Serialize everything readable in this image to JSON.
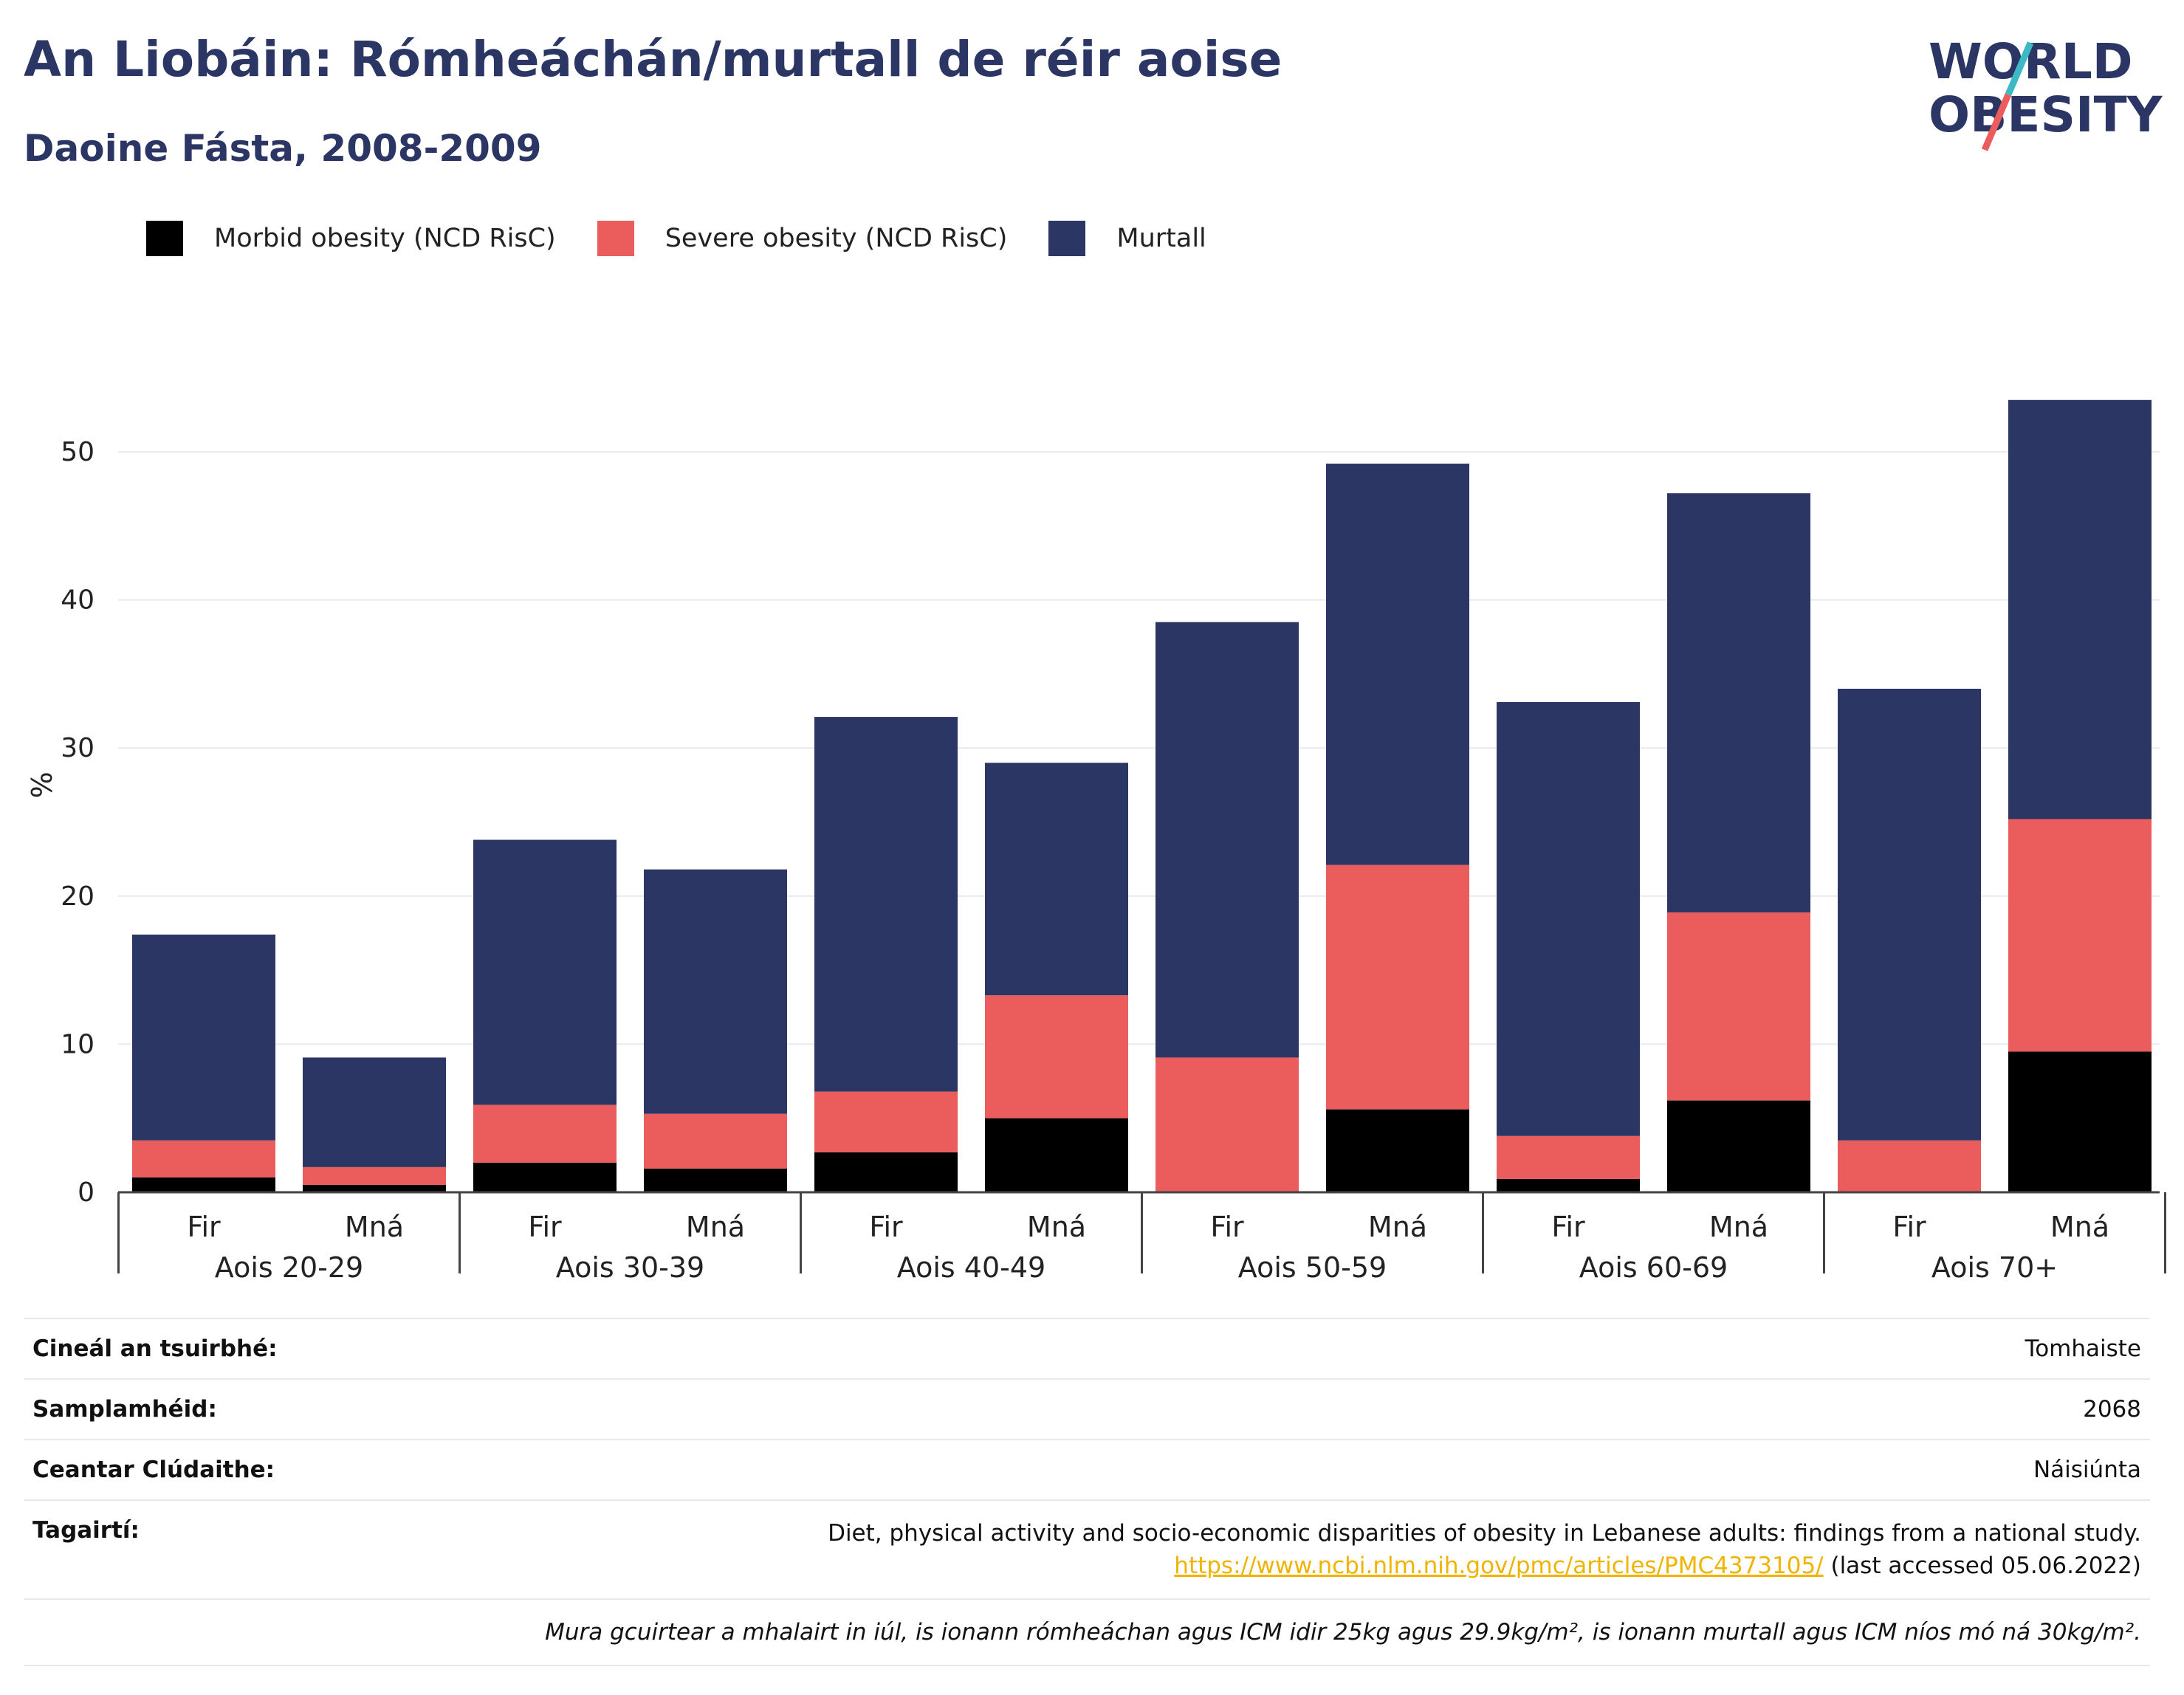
{
  "title": "An Liobáin: Rómheáchán/murtall de réir aoise",
  "subtitle": "Daoine Fásta, 2008-2009",
  "logo": {
    "line1": "WORLD",
    "line2": "OBESITY"
  },
  "chart_data": {
    "type": "bar",
    "stacked": true,
    "ylabel": "%",
    "ylim": [
      0,
      55
    ],
    "yticks": [
      0,
      10,
      20,
      30,
      40,
      50
    ],
    "grid": true,
    "legend_position": "top-left",
    "groups": [
      "Aois 20-29",
      "Aois 30-39",
      "Aois 40-49",
      "Aois 50-59",
      "Aois 60-69",
      "Aois 70+"
    ],
    "sub_categories": [
      "Fir",
      "Mná"
    ],
    "series": [
      {
        "name": "Morbid obesity (NCD RisC)",
        "color": "#000000",
        "values": [
          1.0,
          0.5,
          2.0,
          1.6,
          2.7,
          5.0,
          0,
          5.6,
          0.9,
          6.2,
          0,
          9.5
        ]
      },
      {
        "name": "Severe obesity (NCD RisC)",
        "color": "#eb5c5c",
        "values": [
          2.5,
          1.2,
          3.9,
          3.7,
          4.1,
          8.3,
          9.1,
          16.5,
          2.9,
          12.7,
          3.5,
          15.7
        ]
      },
      {
        "name": "Murtall",
        "color": "#2b3664",
        "values": [
          13.9,
          7.4,
          17.9,
          16.5,
          25.3,
          15.7,
          29.4,
          27.1,
          29.3,
          28.3,
          30.5,
          28.3
        ]
      }
    ]
  },
  "info": {
    "survey_type": {
      "label": "Cineál an tsuirbhé:",
      "value": "Tomhaiste"
    },
    "sample_size": {
      "label": "Samplamhéid:",
      "value": "2068"
    },
    "coverage": {
      "label": "Ceantar Clúdaithe:",
      "value": "Náisiúnta"
    },
    "references": {
      "label": "Tagairtí:",
      "text": "Diet, physical activity and socio-economic disparities of obesity in Lebanese adults: findings from a national study.",
      "link": "https://www.ncbi.nlm.nih.gov/pmc/articles/PMC4373105/",
      "accessed": " (last accessed 05.06.2022)"
    },
    "note": "Mura gcuirtear a mhalairt in iúl, is ionann rómheáchan agus ICM idir 25kg agus 29.9kg/m², is ionann murtall agus ICM níos mó ná 30kg/m²."
  }
}
